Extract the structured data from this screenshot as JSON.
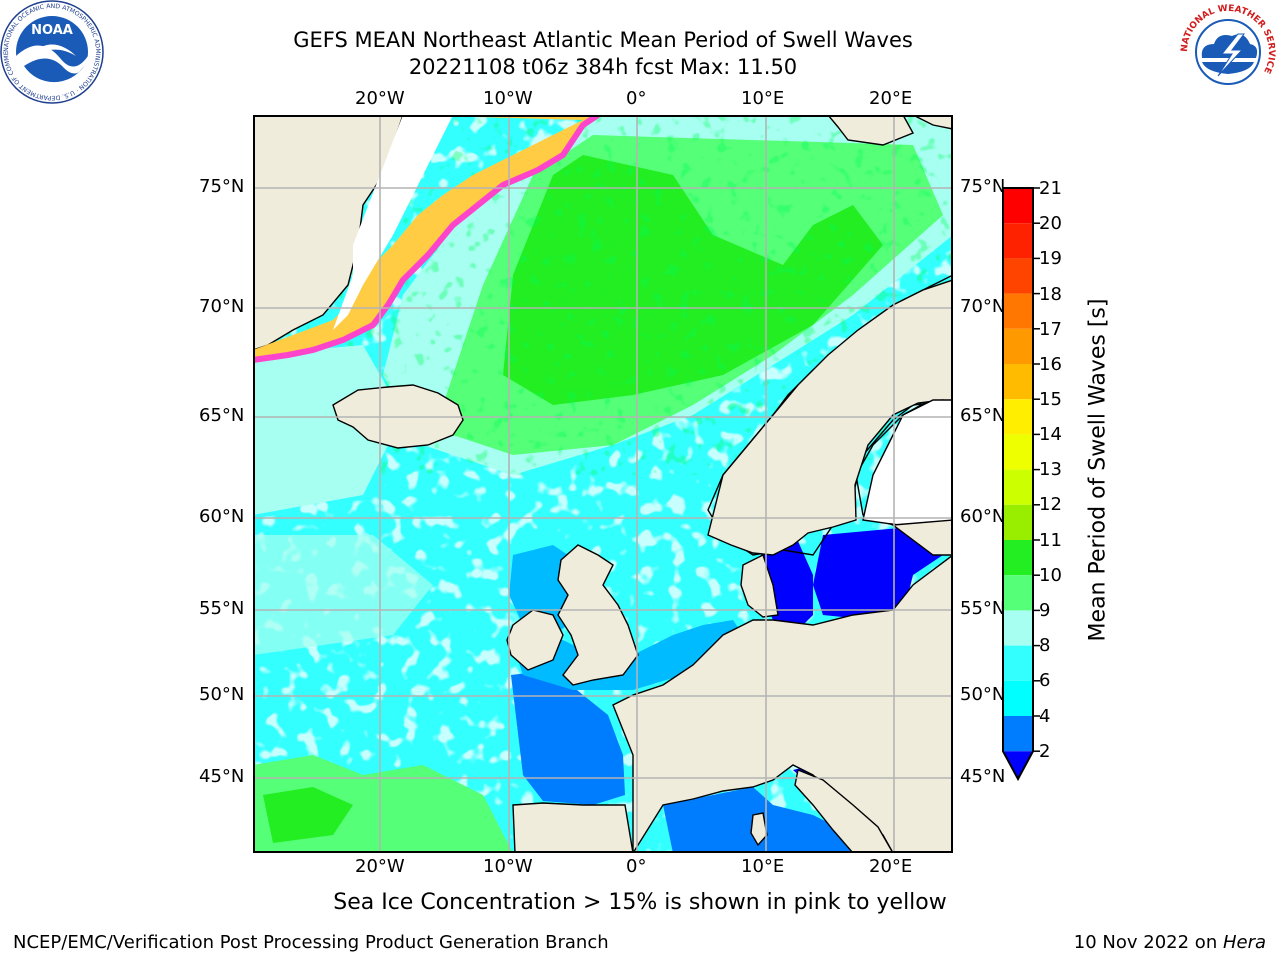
{
  "header": {
    "title_line1": "GEFS MEAN Northeast Atlantic Mean Period of Swell Waves",
    "title_line2": "20221108 t06z 384h fcst   Max: 11.50"
  },
  "logos": {
    "left": {
      "text": "NOAA",
      "ring_text": "NATIONAL OCEANIC AND ATMOSPHERIC ADMINISTRATION · U.S. DEPARTMENT OF COMMERCE"
    },
    "right": {
      "ring_text": "NATIONAL WEATHER SERVICE"
    }
  },
  "map": {
    "lon_ticks_top": [
      "20°W",
      "10°W",
      "0°",
      "10°E",
      "20°E"
    ],
    "lon_ticks_bottom": [
      "20°W",
      "10°W",
      "0°",
      "10°E",
      "20°E"
    ],
    "lat_ticks_left": [
      "75°N",
      "70°N",
      "65°N",
      "60°N",
      "55°N",
      "50°N",
      "45°N"
    ],
    "lat_ticks_right": [
      "75°N",
      "70°N",
      "65°N",
      "60°N",
      "55°N",
      "50°N",
      "45°N"
    ],
    "colors": {
      "land": "#efecdc",
      "ice": "#ffffff",
      "grid": "#b4b4b4"
    }
  },
  "colorbar": {
    "title": "Mean Period of Swell Waves [s]",
    "labels_upper": [
      "21",
      "20",
      "19",
      "18",
      "17",
      "16",
      "15",
      "14",
      "13",
      "12",
      "11",
      "10"
    ],
    "labels_lower": [
      "9",
      "8",
      "6",
      "4",
      "2"
    ],
    "extend": "min"
  },
  "caption": "Sea Ice Concentration > 15% is shown in pink to yellow",
  "footer": {
    "left": "NCEP/EMC/Verification Post Processing Product Generation Branch",
    "right_prefix": "10 Nov 2022 on ",
    "right_italic": "Hera"
  }
}
